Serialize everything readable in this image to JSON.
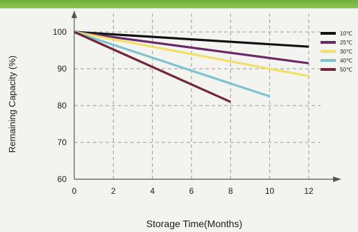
{
  "chart_data": {
    "type": "line",
    "title": "",
    "xlabel": "Storage Time(Months)",
    "ylabel": "Remaining Capacity (%)",
    "xlim": [
      0,
      12.5
    ],
    "ylim": [
      60,
      105
    ],
    "xticks": [
      "0",
      "2",
      "4",
      "6",
      "8",
      "10",
      "12"
    ],
    "yticks": [
      "60",
      "70",
      "80",
      "90",
      "100"
    ],
    "grid": true,
    "legend_position": "top-right",
    "series": [
      {
        "name": "10℃",
        "color": "#111111",
        "x": [
          0,
          12
        ],
        "y": [
          100,
          96
        ]
      },
      {
        "name": "25℃",
        "color": "#6b2a66",
        "x": [
          0,
          12
        ],
        "y": [
          100,
          91.5
        ]
      },
      {
        "name": "30℃",
        "color": "#f2df6a",
        "x": [
          0,
          12
        ],
        "y": [
          100,
          88
        ]
      },
      {
        "name": "40℃",
        "color": "#7fc3cf",
        "x": [
          0,
          10
        ],
        "y": [
          100,
          82.5
        ]
      },
      {
        "name": "50℃",
        "color": "#742634",
        "x": [
          0,
          8
        ],
        "y": [
          100,
          81
        ]
      }
    ]
  }
}
